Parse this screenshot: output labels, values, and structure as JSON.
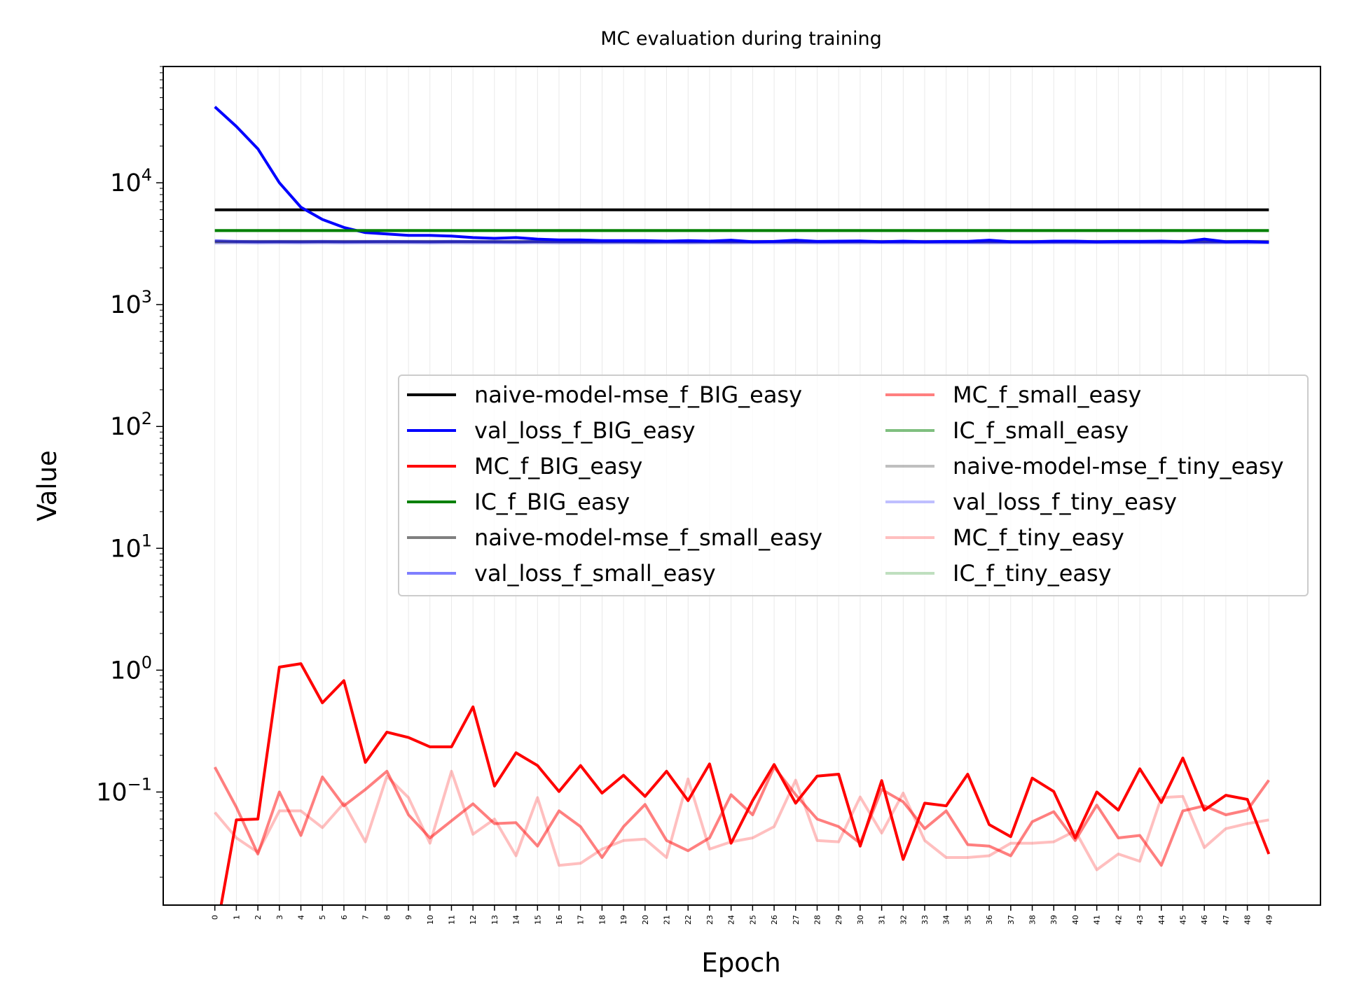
{
  "chart_data": {
    "type": "line",
    "title": "MC evaluation during training",
    "xlabel": "Epoch",
    "ylabel": "Value",
    "yscale": "log",
    "ylim": [
      0.0118,
      90000
    ],
    "xlim": [
      -2.4,
      51.4
    ],
    "x": [
      0,
      1,
      2,
      3,
      4,
      5,
      6,
      7,
      8,
      9,
      10,
      11,
      12,
      13,
      14,
      15,
      16,
      17,
      18,
      19,
      20,
      21,
      22,
      23,
      24,
      25,
      26,
      27,
      28,
      29,
      30,
      31,
      32,
      33,
      34,
      35,
      36,
      37,
      38,
      39,
      40,
      41,
      42,
      43,
      44,
      45,
      46,
      47,
      48,
      49
    ],
    "x_tick_labels": [
      "0",
      "1",
      "2",
      "3",
      "4",
      "5",
      "6",
      "7",
      "8",
      "9",
      "10",
      "11",
      "12",
      "13",
      "14",
      "15",
      "16",
      "17",
      "18",
      "19",
      "20",
      "21",
      "22",
      "23",
      "24",
      "25",
      "26",
      "27",
      "28",
      "29",
      "30",
      "31",
      "32",
      "33",
      "34",
      "35",
      "36",
      "37",
      "38",
      "39",
      "40",
      "41",
      "42",
      "43",
      "44",
      "45",
      "46",
      "47",
      "48",
      "49"
    ],
    "y_ticks": [
      {
        "value": 0.1,
        "base": "10",
        "exp": "−1"
      },
      {
        "value": 1,
        "base": "10",
        "exp": "0"
      },
      {
        "value": 10,
        "base": "10",
        "exp": "1"
      },
      {
        "value": 100,
        "base": "10",
        "exp": "2"
      },
      {
        "value": 1000,
        "base": "10",
        "exp": "3"
      },
      {
        "value": 10000,
        "base": "10",
        "exp": "4"
      }
    ],
    "grid": "vertical-light",
    "legend": {
      "placement": "center-right",
      "columns": 2
    },
    "series": [
      {
        "name": "naive-model-mse_f_BIG_easy",
        "color": "#000000",
        "opacity": 1.0,
        "values": [
          6000,
          6000,
          6000,
          6000,
          6000,
          6000,
          6000,
          6000,
          6000,
          6000,
          6000,
          6000,
          6000,
          6000,
          6000,
          6000,
          6000,
          6000,
          6000,
          6000,
          6000,
          6000,
          6000,
          6000,
          6000,
          6000,
          6000,
          6000,
          6000,
          6000,
          6000,
          6000,
          6000,
          6000,
          6000,
          6000,
          6000,
          6000,
          6000,
          6000,
          6000,
          6000,
          6000,
          6000,
          6000,
          6000,
          6000,
          6000,
          6000,
          6000
        ]
      },
      {
        "name": "val_loss_f_BIG_easy",
        "color": "#0000ff",
        "opacity": 1.0,
        "values": [
          42000,
          29000,
          19000,
          10000,
          6300,
          5000,
          4300,
          3900,
          3800,
          3700,
          3700,
          3650,
          3550,
          3500,
          3550,
          3450,
          3400,
          3400,
          3350,
          3350,
          3350,
          3320,
          3350,
          3320,
          3380,
          3280,
          3300,
          3380,
          3300,
          3320,
          3330,
          3280,
          3320,
          3280,
          3300,
          3300,
          3380,
          3280,
          3280,
          3320,
          3320,
          3280,
          3300,
          3300,
          3320,
          3280,
          3450,
          3280,
          3300,
          3250
        ]
      },
      {
        "name": "MC_f_BIG_easy",
        "color": "#ff0000",
        "opacity": 1.0,
        "values": [
          0.0001,
          0.059,
          0.06,
          1.06,
          1.13,
          0.54,
          0.82,
          0.175,
          0.31,
          0.28,
          0.235,
          0.235,
          0.5,
          0.112,
          0.21,
          0.165,
          0.101,
          0.165,
          0.098,
          0.137,
          0.092,
          0.148,
          0.085,
          0.17,
          0.038,
          0.085,
          0.168,
          0.081,
          0.135,
          0.14,
          0.036,
          0.124,
          0.028,
          0.081,
          0.077,
          0.14,
          0.054,
          0.043,
          0.13,
          0.101,
          0.042,
          0.1,
          0.071,
          0.155,
          0.082,
          0.19,
          0.071,
          0.094,
          0.087,
          0.031
        ]
      },
      {
        "name": "IC_f_BIG_easy",
        "color": "#008000",
        "opacity": 1.0,
        "values": [
          4050,
          4050,
          4050,
          4050,
          4050,
          4050,
          4050,
          4050,
          4050,
          4050,
          4050,
          4050,
          4050,
          4050,
          4050,
          4050,
          4050,
          4050,
          4050,
          4050,
          4050,
          4050,
          4050,
          4050,
          4050,
          4050,
          4050,
          4050,
          4050,
          4050,
          4050,
          4050,
          4050,
          4050,
          4050,
          4050,
          4050,
          4050,
          4050,
          4050,
          4050,
          4050,
          4050,
          4050,
          4050,
          4050,
          4050,
          4050,
          4050,
          4050
        ]
      },
      {
        "name": "naive-model-mse_f_small_easy",
        "color": "#000000",
        "opacity": 0.5,
        "values": [
          3300,
          3300,
          3300,
          3300,
          3300,
          3300,
          3300,
          3300,
          3300,
          3300,
          3300,
          3300,
          3300,
          3300,
          3300,
          3300,
          3300,
          3300,
          3300,
          3300,
          3300,
          3300,
          3300,
          3300,
          3300,
          3300,
          3300,
          3300,
          3300,
          3300,
          3300,
          3300,
          3300,
          3300,
          3300,
          3300,
          3300,
          3300,
          3300,
          3300,
          3300,
          3300,
          3300,
          3300,
          3300,
          3300,
          3300,
          3300,
          3300,
          3300
        ]
      },
      {
        "name": "val_loss_f_small_easy",
        "color": "#0000ff",
        "opacity": 0.5,
        "values": [
          3350,
          3300,
          3280,
          3290,
          3280,
          3300,
          3280,
          3290,
          3300,
          3290,
          3280,
          3300,
          3290,
          3280,
          3270,
          3290,
          3280,
          3270,
          3280,
          3280,
          3270,
          3280,
          3270,
          3280,
          3270,
          3270,
          3280,
          3270,
          3270,
          3270,
          3280,
          3270,
          3260,
          3270,
          3270,
          3260,
          3270,
          3260,
          3270,
          3260,
          3270,
          3260,
          3270,
          3260,
          3270,
          3260,
          3270,
          3260,
          3260,
          3260
        ]
      },
      {
        "name": "MC_f_small_easy",
        "color": "#ff0000",
        "opacity": 0.5,
        "values": [
          0.16,
          0.075,
          0.031,
          0.1,
          0.044,
          0.133,
          0.077,
          0.105,
          0.148,
          0.065,
          0.042,
          0.058,
          0.08,
          0.055,
          0.056,
          0.036,
          0.07,
          0.052,
          0.029,
          0.052,
          0.079,
          0.04,
          0.033,
          0.042,
          0.095,
          0.065,
          0.16,
          0.095,
          0.06,
          0.052,
          0.038,
          0.105,
          0.083,
          0.05,
          0.07,
          0.037,
          0.036,
          0.03,
          0.057,
          0.069,
          0.04,
          0.078,
          0.042,
          0.044,
          0.025,
          0.07,
          0.077,
          0.065,
          0.071,
          0.125
        ]
      },
      {
        "name": "IC_f_small_easy",
        "color": "#008000",
        "opacity": 0.5,
        "values": [
          4050,
          4050,
          4050,
          4050,
          4050,
          4050,
          4050,
          4050,
          4050,
          4050,
          4050,
          4050,
          4050,
          4050,
          4050,
          4050,
          4050,
          4050,
          4050,
          4050,
          4050,
          4050,
          4050,
          4050,
          4050,
          4050,
          4050,
          4050,
          4050,
          4050,
          4050,
          4050,
          4050,
          4050,
          4050,
          4050,
          4050,
          4050,
          4050,
          4050,
          4050,
          4050,
          4050,
          4050,
          4050,
          4050,
          4050,
          4050,
          4050,
          4050
        ]
      },
      {
        "name": "naive-model-mse_f_tiny_easy",
        "color": "#000000",
        "opacity": 0.25,
        "values": [
          3250,
          3250,
          3250,
          3250,
          3250,
          3250,
          3250,
          3250,
          3250,
          3250,
          3250,
          3250,
          3250,
          3250,
          3250,
          3250,
          3250,
          3250,
          3250,
          3250,
          3250,
          3250,
          3250,
          3250,
          3250,
          3250,
          3250,
          3250,
          3250,
          3250,
          3250,
          3250,
          3250,
          3250,
          3250,
          3250,
          3250,
          3250,
          3250,
          3250,
          3250,
          3250,
          3250,
          3250,
          3250,
          3250,
          3250,
          3250,
          3250,
          3250
        ]
      },
      {
        "name": "val_loss_f_tiny_easy",
        "color": "#0000ff",
        "opacity": 0.25,
        "values": [
          3200,
          3210,
          3200,
          3210,
          3200,
          3210,
          3200,
          3210,
          3200,
          3210,
          3200,
          3210,
          3200,
          3210,
          3200,
          3210,
          3200,
          3210,
          3200,
          3210,
          3200,
          3210,
          3200,
          3210,
          3200,
          3210,
          3200,
          3210,
          3200,
          3210,
          3200,
          3210,
          3200,
          3210,
          3200,
          3210,
          3200,
          3210,
          3200,
          3210,
          3200,
          3210,
          3200,
          3210,
          3200,
          3210,
          3200,
          3210,
          3200,
          3210
        ]
      },
      {
        "name": "MC_f_tiny_easy",
        "color": "#ff0000",
        "opacity": 0.25,
        "values": [
          0.068,
          0.042,
          0.032,
          0.07,
          0.07,
          0.051,
          0.081,
          0.039,
          0.135,
          0.09,
          0.038,
          0.148,
          0.045,
          0.06,
          0.03,
          0.09,
          0.025,
          0.026,
          0.034,
          0.04,
          0.041,
          0.029,
          0.128,
          0.034,
          0.039,
          0.042,
          0.052,
          0.125,
          0.04,
          0.039,
          0.091,
          0.046,
          0.098,
          0.04,
          0.029,
          0.029,
          0.03,
          0.038,
          0.038,
          0.039,
          0.048,
          0.023,
          0.031,
          0.027,
          0.09,
          0.092,
          0.035,
          0.05,
          0.055,
          0.059
        ]
      },
      {
        "name": "IC_f_tiny_easy",
        "color": "#008000",
        "opacity": 0.25,
        "values": [
          4050,
          4050,
          4050,
          4050,
          4050,
          4050,
          4050,
          4050,
          4050,
          4050,
          4050,
          4050,
          4050,
          4050,
          4050,
          4050,
          4050,
          4050,
          4050,
          4050,
          4050,
          4050,
          4050,
          4050,
          4050,
          4050,
          4050,
          4050,
          4050,
          4050,
          4050,
          4050,
          4050,
          4050,
          4050,
          4050,
          4050,
          4050,
          4050,
          4050,
          4050,
          4050,
          4050,
          4050,
          4050,
          4050,
          4050,
          4050,
          4050,
          4050
        ]
      }
    ]
  }
}
